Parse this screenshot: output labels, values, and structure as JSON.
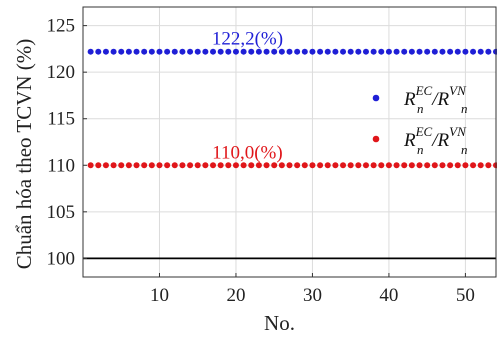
{
  "chart_data": {
    "type": "scatter",
    "xlabel": "No.",
    "ylabel": "Chuẩn hóa theo TCVN (%)",
    "xlim": [
      0,
      54
    ],
    "ylim": [
      98,
      127
    ],
    "xticks": [
      "10",
      "20",
      "30",
      "40",
      "50"
    ],
    "xtick_values": [
      10,
      20,
      30,
      40,
      50
    ],
    "yticks": [
      "100",
      "105",
      "110",
      "115",
      "120",
      "125"
    ],
    "ytick_values": [
      100,
      105,
      110,
      115,
      120,
      125
    ],
    "grid": true,
    "legend_position": "right",
    "reference_line": {
      "y": 100,
      "color": "#000000"
    },
    "series": [
      {
        "legend_main": "R",
        "legend_sup1": "EC",
        "legend_sub1": "n",
        "legend_sep": "/R",
        "legend_sup2": "VN",
        "legend_sub2": "n",
        "color": "#1f1fd6",
        "y": 122.2,
        "x_start": 1,
        "x_end": 54,
        "label": "122,2(%)",
        "label_x": 21.5
      },
      {
        "legend_main": "R",
        "legend_sup1": "EC",
        "legend_sub1": "n",
        "legend_sep": "/R",
        "legend_sup2": "VN",
        "legend_sub2": "n",
        "color": "#e0161a",
        "y": 110.0,
        "x_start": 1,
        "x_end": 54,
        "label": "110,0(%)",
        "label_x": 21.5
      }
    ]
  }
}
